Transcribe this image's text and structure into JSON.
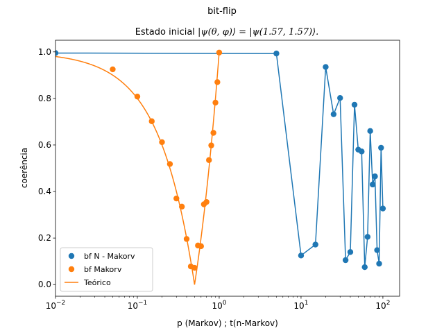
{
  "figure": {
    "suptitle": "bit-flip",
    "title_prefix": "Estado inicial ",
    "title_math": "|ψ(θ, φ)⟩ = |ψ(1.57, 1.57)⟩."
  },
  "chart_data": {
    "type": "scatter",
    "xlabel": "p (Markov) ; t(n-Markov)",
    "ylabel": "coerência",
    "xscale": "log",
    "xlim": [
      0.01,
      160
    ],
    "ylim": [
      -0.05,
      1.05
    ],
    "x_ticks": [
      {
        "value": 0.01,
        "base": "10",
        "exp": "−2"
      },
      {
        "value": 0.1,
        "base": "10",
        "exp": "−1"
      },
      {
        "value": 1,
        "base": "10",
        "exp": "0"
      },
      {
        "value": 10,
        "base": "10",
        "exp": "1"
      },
      {
        "value": 100,
        "base": "10",
        "exp": "2"
      }
    ],
    "y_ticks": [
      "0.0",
      "0.2",
      "0.4",
      "0.6",
      "0.8",
      "1.0"
    ],
    "legend_position": "lower-left",
    "colors": {
      "blue": "#1f77b4",
      "orange": "#ff7f0e"
    },
    "series": [
      {
        "name": "bf N - Makorv",
        "style": "line+markers",
        "color": "#1f77b4",
        "x": [
          0.01,
          5,
          10,
          15,
          20,
          25,
          30,
          35,
          40,
          45,
          50,
          55,
          60,
          65,
          70,
          75,
          80,
          85,
          90,
          95,
          100
        ],
        "y": [
          0.995,
          0.993,
          0.125,
          0.172,
          0.935,
          0.732,
          0.802,
          0.105,
          0.14,
          0.773,
          0.58,
          0.572,
          0.075,
          0.205,
          0.66,
          0.43,
          0.465,
          0.148,
          0.09,
          0.588,
          0.327
        ]
      },
      {
        "name": "bf Makorv",
        "style": "markers",
        "color": "#ff7f0e",
        "x": [
          0.05,
          0.1,
          0.15,
          0.2,
          0.25,
          0.3,
          0.35,
          0.4,
          0.45,
          0.5,
          0.55,
          0.6,
          0.65,
          0.7,
          0.75,
          0.8,
          0.85,
          0.9,
          0.95,
          1.0
        ],
        "y": [
          0.925,
          0.808,
          0.702,
          0.612,
          0.518,
          0.37,
          0.335,
          0.196,
          0.078,
          0.072,
          0.168,
          0.165,
          0.345,
          0.355,
          0.535,
          0.598,
          0.652,
          0.782,
          0.87,
          0.997
        ]
      },
      {
        "name": "Teórico",
        "style": "line",
        "color": "#ff7f0e",
        "function": "|1-2p|",
        "x_range": [
          0.01,
          1.0
        ]
      }
    ]
  }
}
